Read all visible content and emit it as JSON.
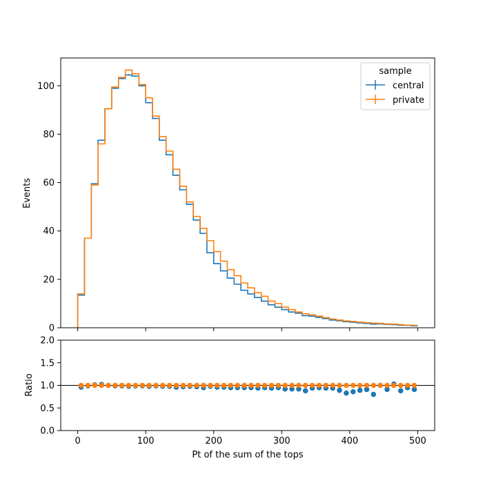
{
  "chart_data": [
    {
      "type": "step",
      "xlabel": "",
      "ylabel": "Events",
      "xlim": [
        -25,
        525
      ],
      "ylim": [
        0,
        111.5
      ],
      "xticks": [
        0,
        100,
        200,
        300,
        400,
        500
      ],
      "yticks": [
        0,
        20,
        40,
        60,
        80,
        100
      ],
      "bin_edges": [
        0,
        10,
        20,
        30,
        40,
        50,
        60,
        70,
        80,
        90,
        100,
        110,
        120,
        130,
        140,
        150,
        160,
        170,
        180,
        190,
        200,
        210,
        220,
        230,
        240,
        250,
        260,
        270,
        280,
        290,
        300,
        310,
        320,
        330,
        340,
        350,
        360,
        370,
        380,
        390,
        400,
        410,
        420,
        430,
        440,
        450,
        460,
        470,
        480,
        490,
        500
      ],
      "legend": {
        "title": "sample",
        "position": "top-right"
      },
      "series": [
        {
          "name": "central",
          "color": "#1f77b4",
          "values": [
            13.5,
            37.0,
            59.5,
            77.5,
            90.5,
            99.0,
            103.0,
            104.5,
            104.0,
            100.0,
            93.0,
            86.5,
            77.5,
            71.5,
            63.0,
            57.0,
            51.0,
            44.5,
            39.0,
            31.0,
            26.5,
            23.5,
            20.5,
            18.0,
            15.5,
            14.0,
            12.5,
            11.0,
            9.5,
            8.5,
            7.5,
            6.5,
            6.0,
            5.0,
            4.8,
            4.3,
            3.8,
            3.2,
            2.9,
            2.5,
            2.3,
            2.0,
            1.8,
            1.5,
            1.6,
            1.4,
            1.3,
            1.1,
            1.0,
            0.8
          ]
        },
        {
          "name": "private",
          "color": "#ff7f0e",
          "values": [
            14.0,
            37.0,
            59.0,
            76.0,
            90.5,
            99.5,
            103.5,
            106.5,
            105.0,
            100.5,
            95.0,
            87.5,
            79.0,
            73.0,
            65.5,
            58.5,
            52.0,
            46.0,
            41.0,
            36.0,
            31.5,
            27.5,
            24.0,
            21.5,
            18.5,
            16.5,
            14.5,
            13.0,
            11.0,
            10.0,
            8.5,
            7.5,
            6.5,
            5.8,
            5.3,
            4.8,
            4.2,
            3.6,
            3.2,
            2.8,
            2.6,
            2.3,
            2.1,
            1.9,
            1.8,
            1.6,
            1.5,
            1.3,
            1.1,
            1.0
          ]
        }
      ]
    },
    {
      "type": "scatter",
      "xlabel": "Pt of the sum of the tops",
      "ylabel": "Ratio",
      "xlim": [
        -25,
        525
      ],
      "ylim": [
        0,
        2
      ],
      "xticks": [
        0,
        100,
        200,
        300,
        400,
        500
      ],
      "yticks": [
        "0.0",
        "0.5",
        "1.0",
        "1.5",
        "2.0"
      ],
      "reference_line": 1.0,
      "x": [
        5,
        15,
        25,
        35,
        45,
        55,
        65,
        75,
        85,
        95,
        105,
        115,
        125,
        135,
        145,
        155,
        165,
        175,
        185,
        195,
        205,
        215,
        225,
        235,
        245,
        255,
        265,
        275,
        285,
        295,
        305,
        315,
        325,
        335,
        345,
        355,
        365,
        375,
        385,
        395,
        405,
        415,
        425,
        435,
        445,
        455,
        465,
        475,
        485,
        495
      ],
      "series": [
        {
          "name": "central",
          "color": "#1f77b4",
          "values": [
            0.96,
            0.99,
            1.01,
            1.02,
            1.0,
            0.99,
            0.99,
            0.98,
            0.99,
            0.99,
            0.98,
            0.99,
            0.98,
            0.98,
            0.96,
            0.97,
            0.98,
            0.97,
            0.95,
            0.98,
            0.96,
            0.96,
            0.95,
            0.95,
            0.95,
            0.95,
            0.94,
            0.95,
            0.94,
            0.95,
            0.92,
            0.92,
            0.92,
            0.88,
            0.94,
            0.95,
            0.94,
            0.94,
            0.89,
            0.83,
            0.86,
            0.89,
            0.91,
            0.8,
            1.0,
            0.91,
            1.03,
            0.88,
            0.95,
            0.91
          ]
        },
        {
          "name": "private",
          "color": "#ff7f0e",
          "values": [
            1,
            1,
            1,
            1,
            1,
            1,
            1,
            1,
            1,
            1,
            1,
            1,
            1,
            1,
            1,
            1,
            1,
            1,
            1,
            1,
            1,
            1,
            1,
            1,
            1,
            1,
            1,
            1,
            1,
            1,
            1,
            1,
            1,
            1,
            1,
            1,
            1,
            1,
            1,
            1,
            1,
            1,
            1,
            1,
            1,
            1,
            1,
            1,
            1,
            1
          ]
        }
      ]
    }
  ]
}
